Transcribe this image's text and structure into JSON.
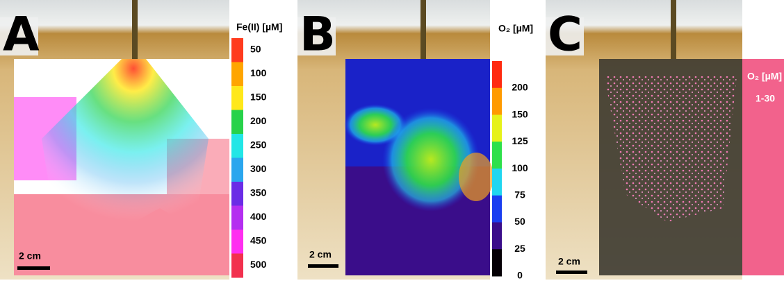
{
  "panels": [
    {
      "letter": "A",
      "colorbar_title": "Fe(II) [µM]",
      "colorbar_labels": [
        "50",
        "100",
        "150",
        "200",
        "250",
        "300",
        "350",
        "400",
        "450",
        "500"
      ],
      "colorbar_colors": [
        "#ff3b1e",
        "#ffa500",
        "#ffe81a",
        "#27d24a",
        "#22e6e6",
        "#2aa6ee",
        "#6a2ce6",
        "#b42ef0",
        "#ff2ef0",
        "#f2304e"
      ],
      "scale_label": "2 cm"
    },
    {
      "letter": "B",
      "colorbar_title": "O₂ [µM]",
      "colorbar_labels": [
        "200",
        "150",
        "125",
        "100",
        "75",
        "50",
        "25",
        "0"
      ],
      "colorbar_colors": [
        "#ff2a10",
        "#ff9a00",
        "#e6f21a",
        "#2ee04a",
        "#20d6f0",
        "#1a3ef0",
        "#3a0d8a",
        "#050005"
      ],
      "scale_label": "2 cm"
    },
    {
      "letter": "C",
      "legend_title": "O₂ [µM]",
      "legend_label": "1-30",
      "scale_label": "2 cm"
    }
  ]
}
